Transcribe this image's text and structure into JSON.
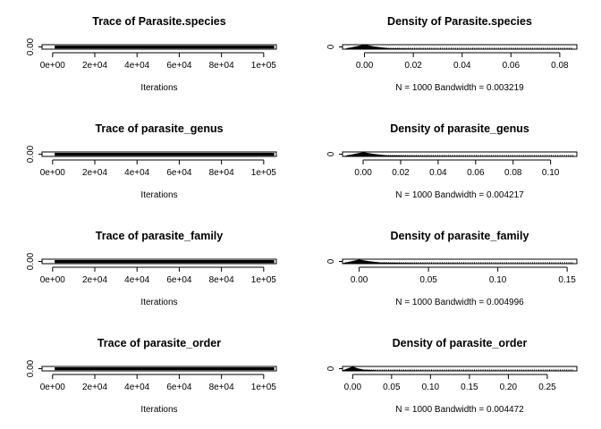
{
  "chart_data": [
    {
      "type": "line",
      "title": "Trace of Parasite.species",
      "xlabel": "Iterations",
      "xticks": [
        0,
        20000,
        40000,
        60000,
        80000,
        100000
      ],
      "xtick_labels": [
        "0e+00",
        "2e+04",
        "4e+04",
        "6e+04",
        "8e+04",
        "1e+05"
      ],
      "xlim": [
        -5000,
        106000
      ],
      "yticks": [
        0
      ],
      "ytick_labels": [
        "0.00"
      ],
      "ylim": [
        -0.002,
        0.09
      ],
      "series": [
        {
          "x": [
            1000,
            105000
          ],
          "values": [
            0.003,
            0.003
          ]
        }
      ]
    },
    {
      "type": "area",
      "title": "Density of Parasite.species",
      "xlabel": "N = 1000   Bandwidth = 0.003219",
      "xticks": [
        0,
        0.02,
        0.04,
        0.06,
        0.08
      ],
      "xtick_labels": [
        "0.00",
        "0.02",
        "0.04",
        "0.06",
        "0.08"
      ],
      "xlim": [
        -0.009,
        0.087
      ],
      "yticks": [
        0
      ],
      "ytick_labels": [
        "0"
      ],
      "ylim": [
        0,
        120
      ],
      "x": [
        -0.008,
        0,
        0.004,
        0.01,
        0.02,
        0.03,
        0.04,
        0.06,
        0.087
      ],
      "values": [
        0,
        110,
        60,
        12,
        4,
        1.5,
        0.6,
        0.2,
        0
      ]
    },
    {
      "type": "line",
      "title": "Trace of parasite_genus",
      "xlabel": "Iterations",
      "xticks": [
        0,
        20000,
        40000,
        60000,
        80000,
        100000
      ],
      "xtick_labels": [
        "0e+00",
        "2e+04",
        "4e+04",
        "6e+04",
        "8e+04",
        "1e+05"
      ],
      "xlim": [
        -5000,
        106000
      ],
      "yticks": [
        0
      ],
      "ytick_labels": [
        "0.00"
      ],
      "ylim": [
        -0.002,
        0.11
      ],
      "series": [
        {
          "x": [
            1000,
            105000
          ],
          "values": [
            0.004,
            0.004
          ]
        }
      ]
    },
    {
      "type": "area",
      "title": "Density of parasite_genus",
      "xlabel": "N = 1000   Bandwidth = 0.004217",
      "xticks": [
        0,
        0.02,
        0.04,
        0.06,
        0.08,
        0.1
      ],
      "xtick_labels": [
        "0.00",
        "0.02",
        "0.04",
        "0.06",
        "0.08",
        "0.10"
      ],
      "xlim": [
        -0.011,
        0.114
      ],
      "yticks": [
        0
      ],
      "ytick_labels": [
        "0"
      ],
      "ylim": [
        0,
        100
      ],
      "x": [
        -0.01,
        0,
        0.005,
        0.012,
        0.025,
        0.04,
        0.06,
        0.08,
        0.114
      ],
      "values": [
        0,
        85,
        50,
        14,
        5,
        2,
        0.8,
        0.3,
        0
      ]
    },
    {
      "type": "line",
      "title": "Trace of parasite_family",
      "xlabel": "Iterations",
      "xticks": [
        0,
        20000,
        40000,
        60000,
        80000,
        100000
      ],
      "xtick_labels": [
        "0e+00",
        "2e+04",
        "4e+04",
        "6e+04",
        "8e+04",
        "1e+05"
      ],
      "xlim": [
        -5000,
        106000
      ],
      "yticks": [
        0
      ],
      "ytick_labels": [
        "0.00"
      ],
      "ylim": [
        -0.002,
        0.16
      ],
      "series": [
        {
          "x": [
            1000,
            105000
          ],
          "values": [
            0.006,
            0.006
          ]
        }
      ]
    },
    {
      "type": "area",
      "title": "Density of parasite_family",
      "xlabel": "N = 1000   Bandwidth = 0.004996",
      "xticks": [
        0,
        0.05,
        0.1,
        0.15
      ],
      "xtick_labels": [
        "0.00",
        "0.05",
        "0.10",
        "0.15"
      ],
      "xlim": [
        -0.012,
        0.157
      ],
      "yticks": [
        0
      ],
      "ytick_labels": [
        "0"
      ],
      "ylim": [
        0,
        80
      ],
      "x": [
        -0.012,
        0,
        0.006,
        0.015,
        0.03,
        0.05,
        0.08,
        0.11,
        0.157
      ],
      "values": [
        0,
        65,
        40,
        15,
        6,
        2.5,
        1,
        0.3,
        0
      ]
    },
    {
      "type": "line",
      "title": "Trace of parasite_order",
      "xlabel": "Iterations",
      "xticks": [
        0,
        20000,
        40000,
        60000,
        80000,
        100000
      ],
      "xtick_labels": [
        "0e+00",
        "2e+04",
        "4e+04",
        "6e+04",
        "8e+04",
        "1e+05"
      ],
      "xlim": [
        -5000,
        106000
      ],
      "yticks": [
        0
      ],
      "ytick_labels": [
        "0.00"
      ],
      "ylim": [
        -0.003,
        0.29
      ],
      "series": [
        {
          "x": [
            1000,
            105000
          ],
          "values": [
            0.005,
            0.005
          ]
        }
      ]
    },
    {
      "type": "area",
      "title": "Density of parasite_order",
      "xlabel": "N = 1000   Bandwidth = 0.004472",
      "xticks": [
        0,
        0.05,
        0.1,
        0.15,
        0.2,
        0.25
      ],
      "xtick_labels": [
        "0.00",
        "0.05",
        "0.10",
        "0.15",
        "0.20",
        "0.25"
      ],
      "xlim": [
        -0.013,
        0.288
      ],
      "yticks": [
        0
      ],
      "ytick_labels": [
        "0"
      ],
      "ylim": [
        0,
        110
      ],
      "x": [
        -0.013,
        0,
        0.006,
        0.015,
        0.03,
        0.06,
        0.1,
        0.15,
        0.288
      ],
      "values": [
        0,
        95,
        55,
        18,
        6,
        2,
        0.7,
        0.2,
        0
      ]
    }
  ]
}
